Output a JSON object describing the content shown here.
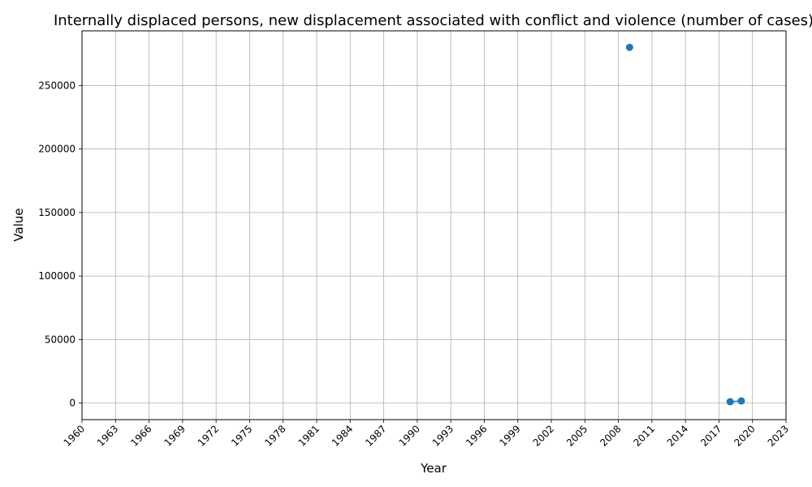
{
  "chart_data": {
    "type": "line",
    "title": "Internally displaced persons, new displacement associated with conflict and violence (number of cases)",
    "xlabel": "Year",
    "ylabel": "Value",
    "xlim": [
      1960,
      2023
    ],
    "ylim": [
      -13000,
      293000
    ],
    "x_ticks": [
      1960,
      1963,
      1966,
      1969,
      1972,
      1975,
      1978,
      1981,
      1984,
      1987,
      1990,
      1993,
      1996,
      1999,
      2002,
      2005,
      2008,
      2011,
      2014,
      2017,
      2020,
      2023
    ],
    "y_ticks": [
      0,
      50000,
      100000,
      150000,
      200000,
      250000
    ],
    "grid": true,
    "series": [
      {
        "name": "Value",
        "color": "#1f77b4",
        "x": [
          2009,
          2018,
          2019
        ],
        "y": [
          280000,
          1100,
          1700
        ]
      }
    ]
  }
}
